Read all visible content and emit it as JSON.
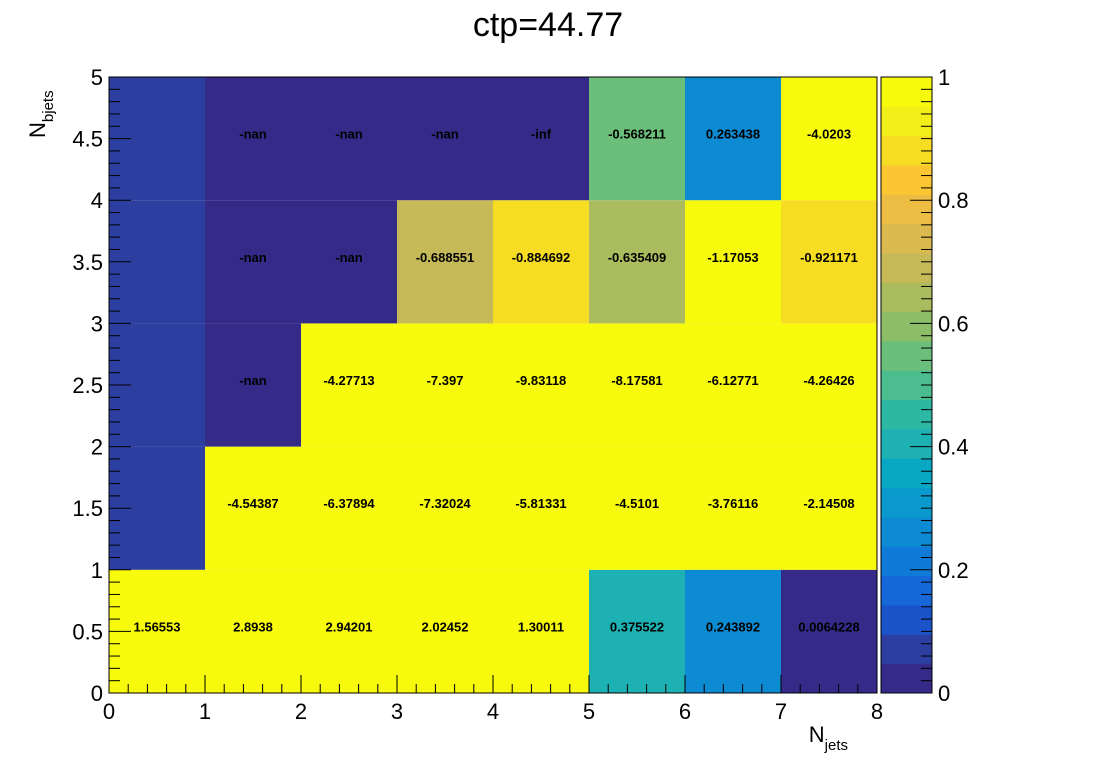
{
  "chart_data": {
    "type": "heatmap",
    "title": "ctp=44.77",
    "xlabel": {
      "main": "N",
      "sub": "jets"
    },
    "ylabel": {
      "main": "N",
      "sub": "bjets"
    },
    "xlim": [
      0,
      8
    ],
    "ylim": [
      0,
      5
    ],
    "zlim": [
      0,
      1
    ],
    "x_ticks": [
      "0",
      "1",
      "2",
      "3",
      "4",
      "5",
      "6",
      "7",
      "8"
    ],
    "y_ticks": [
      "0",
      "0.5",
      "1",
      "1.5",
      "2",
      "2.5",
      "3",
      "3.5",
      "4",
      "4.5",
      "5"
    ],
    "z_ticks": [
      "0",
      "0.2",
      "0.4",
      "0.6",
      "0.8",
      "1"
    ],
    "x_bins": [
      0,
      1,
      2,
      3,
      4,
      5,
      6,
      7,
      8
    ],
    "y_bins": [
      0,
      1,
      2,
      3,
      4,
      5
    ],
    "cells": [
      {
        "ix": 0,
        "iy": 0,
        "label": "1.56553",
        "color_level": 1.0
      },
      {
        "ix": 1,
        "iy": 0,
        "label": "2.8938",
        "color_level": 1.0
      },
      {
        "ix": 2,
        "iy": 0,
        "label": "2.94201",
        "color_level": 1.0
      },
      {
        "ix": 3,
        "iy": 0,
        "label": "2.02452",
        "color_level": 1.0
      },
      {
        "ix": 4,
        "iy": 0,
        "label": "1.30011",
        "color_level": 1.0
      },
      {
        "ix": 5,
        "iy": 0,
        "label": "0.375522",
        "color_level": 0.375522
      },
      {
        "ix": 6,
        "iy": 0,
        "label": "0.243892",
        "color_level": 0.243892
      },
      {
        "ix": 7,
        "iy": 0,
        "label": "0.0064228",
        "color_level": 0.0064228
      },
      {
        "ix": 0,
        "iy": 1,
        "label": "",
        "color_level": 0.03
      },
      {
        "ix": 1,
        "iy": 1,
        "label": "-4.54387",
        "color_level": 1.0
      },
      {
        "ix": 2,
        "iy": 1,
        "label": "-6.37894",
        "color_level": 1.0
      },
      {
        "ix": 3,
        "iy": 1,
        "label": "-7.32024",
        "color_level": 1.0
      },
      {
        "ix": 4,
        "iy": 1,
        "label": "-5.81331",
        "color_level": 1.0
      },
      {
        "ix": 5,
        "iy": 1,
        "label": "-4.5101",
        "color_level": 1.0
      },
      {
        "ix": 6,
        "iy": 1,
        "label": "-3.76116",
        "color_level": 1.0
      },
      {
        "ix": 7,
        "iy": 1,
        "label": "-2.14508",
        "color_level": 1.0
      },
      {
        "ix": 0,
        "iy": 2,
        "label": "",
        "color_level": 0.03
      },
      {
        "ix": 1,
        "iy": 2,
        "label": "-nan",
        "color_level": 0.0
      },
      {
        "ix": 2,
        "iy": 2,
        "label": "-4.27713",
        "color_level": 1.0
      },
      {
        "ix": 3,
        "iy": 2,
        "label": "-7.397",
        "color_level": 1.0
      },
      {
        "ix": 4,
        "iy": 2,
        "label": "-9.83118",
        "color_level": 1.0
      },
      {
        "ix": 5,
        "iy": 2,
        "label": "-8.17581",
        "color_level": 1.0
      },
      {
        "ix": 6,
        "iy": 2,
        "label": "-6.12771",
        "color_level": 1.0
      },
      {
        "ix": 7,
        "iy": 2,
        "label": "-4.26426",
        "color_level": 1.0
      },
      {
        "ix": 0,
        "iy": 3,
        "label": "",
        "color_level": 0.03
      },
      {
        "ix": 1,
        "iy": 3,
        "label": "-nan",
        "color_level": 0.0
      },
      {
        "ix": 2,
        "iy": 3,
        "label": "-nan",
        "color_level": 0.0
      },
      {
        "ix": 3,
        "iy": 3,
        "label": "-0.688551",
        "color_level": 0.688551
      },
      {
        "ix": 4,
        "iy": 3,
        "label": "-0.884692",
        "color_level": 0.884692
      },
      {
        "ix": 5,
        "iy": 3,
        "label": "-0.635409",
        "color_level": 0.635409
      },
      {
        "ix": 6,
        "iy": 3,
        "label": "-1.17053",
        "color_level": 1.0
      },
      {
        "ix": 7,
        "iy": 3,
        "label": "-0.921171",
        "color_level": 0.921171
      },
      {
        "ix": 0,
        "iy": 4,
        "label": "",
        "color_level": 0.03
      },
      {
        "ix": 1,
        "iy": 4,
        "label": "-nan",
        "color_level": 0.0
      },
      {
        "ix": 2,
        "iy": 4,
        "label": "-nan",
        "color_level": 0.0
      },
      {
        "ix": 3,
        "iy": 4,
        "label": "-nan",
        "color_level": 0.0
      },
      {
        "ix": 4,
        "iy": 4,
        "label": "-inf",
        "color_level": 0.0
      },
      {
        "ix": 5,
        "iy": 4,
        "label": "-0.568211",
        "color_level": 0.568211
      },
      {
        "ix": 6,
        "iy": 4,
        "label": "0.263438",
        "color_level": 0.263438
      },
      {
        "ix": 7,
        "iy": 4,
        "label": "-4.0203",
        "color_level": 1.0
      }
    ],
    "grid": false,
    "legend": "none",
    "colormap": "parula",
    "colors": {
      "palette": [
        "#352a87",
        "#2c3ea0",
        "#1b53c9",
        "#1667d8",
        "#0f7ad7",
        "#0c8ad2",
        "#0a99cc",
        "#08a7c3",
        "#1db1b4",
        "#2cb8a3",
        "#4bbd8e",
        "#6bbf7a",
        "#8cbe68",
        "#aabc5d",
        "#c6b958",
        "#dab94f",
        "#ecbd42",
        "#fac732",
        "#f6dc22",
        "#f2ee19",
        "#f8fa0d"
      ],
      "text": "#000000",
      "axis": "#000000"
    }
  }
}
